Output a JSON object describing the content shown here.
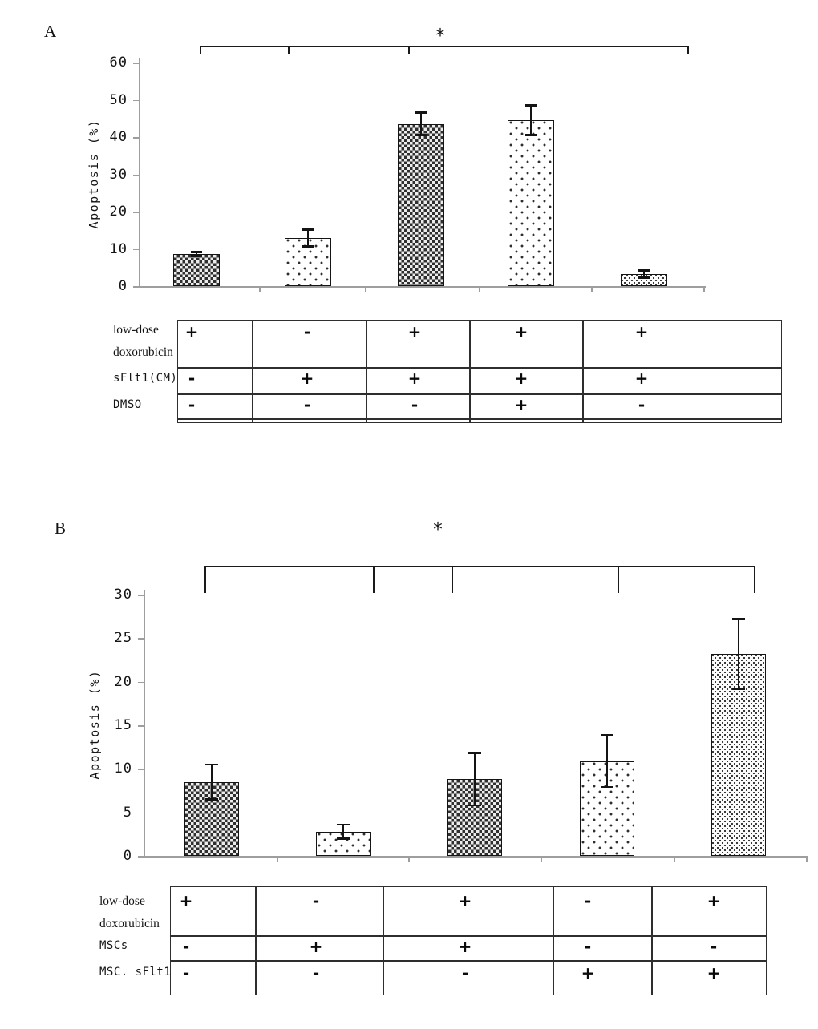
{
  "colors": {
    "ink": "#141414",
    "axis_gray": "#9e9e9e",
    "background": "#ffffff"
  },
  "panels": [
    {
      "label": "A",
      "significance": {
        "marker": "*"
      },
      "condition_table": {
        "rows": [
          {
            "label_lines": [
              "low-dose",
              "doxorubicin"
            ],
            "values": [
              "+",
              "-",
              "+",
              "+",
              "+"
            ]
          },
          {
            "label_lines": [
              "sFlt1(CM)"
            ],
            "values": [
              "-",
              "+",
              "+",
              "+",
              "+"
            ]
          },
          {
            "label_lines": [
              "DMSO"
            ],
            "values": [
              "-",
              "-",
              "-",
              "+",
              "-"
            ]
          }
        ]
      }
    },
    {
      "label": "B",
      "significance": {
        "marker": "*"
      },
      "condition_table": {
        "rows": [
          {
            "label_lines": [
              "low-dose",
              "doxorubicin"
            ],
            "values": [
              "+",
              "-",
              "+",
              "-",
              "+"
            ]
          },
          {
            "label_lines": [
              "MSCs"
            ],
            "values": [
              "-",
              "+",
              "+",
              "-",
              "-"
            ]
          },
          {
            "label_lines": [
              "MSC. sFlt1"
            ],
            "values": [
              "-",
              "-",
              "-",
              "+",
              "+"
            ]
          }
        ]
      }
    }
  ],
  "chart_data": [
    {
      "type": "bar",
      "title": "",
      "xlabel": "",
      "ylabel": "Apoptosis (%)",
      "ylim": [
        0,
        60
      ],
      "yticks": [
        0,
        10,
        20,
        30,
        40,
        50,
        60
      ],
      "grid": false,
      "legend": false,
      "categories": [
        "doxorubicin+ / sFlt1(CM)- / DMSO-",
        "doxorubicin- / sFlt1(CM)+ / DMSO-",
        "doxorubicin+ / sFlt1(CM)+ / DMSO-",
        "doxorubicin+ / sFlt1(CM)+ / DMSO+",
        "doxorubicin+ / sFlt1(CM)+ / DMSO-"
      ],
      "values": [
        8.6,
        12.9,
        43.5,
        44.5,
        3.2
      ],
      "errors": [
        0.5,
        2.2,
        3.0,
        4.0,
        1.0
      ],
      "significance": "* bracket spanning all five groups",
      "bar_patterns": [
        "dark-crosshatch",
        "sparse-dots",
        "dark-crosshatch",
        "sparse-dots",
        "fine-checker"
      ]
    },
    {
      "type": "bar",
      "title": "",
      "xlabel": "",
      "ylabel": "Apoptosis (%)",
      "ylim": [
        0,
        30
      ],
      "yticks": [
        0,
        5,
        10,
        15,
        20,
        25,
        30
      ],
      "grid": false,
      "legend": false,
      "categories": [
        "doxorubicin+ / MSCs- / MSC.sFlt1-",
        "doxorubicin- / MSCs+ / MSC.sFlt1-",
        "doxorubicin+ / MSCs+ / MSC.sFlt1-",
        "doxorubicin- / MSCs- / MSC.sFlt1+",
        "doxorubicin+ / MSCs- / MSC.sFlt1+"
      ],
      "values": [
        8.5,
        2.8,
        8.8,
        10.9,
        23.2
      ],
      "errors": [
        2.0,
        0.8,
        3.0,
        3.0,
        4.0
      ],
      "significance": "* bracket spanning all five groups",
      "bar_patterns": [
        "dark-crosshatch",
        "sparse-dots",
        "dark-crosshatch",
        "sparse-dots",
        "fine-checker"
      ]
    }
  ]
}
